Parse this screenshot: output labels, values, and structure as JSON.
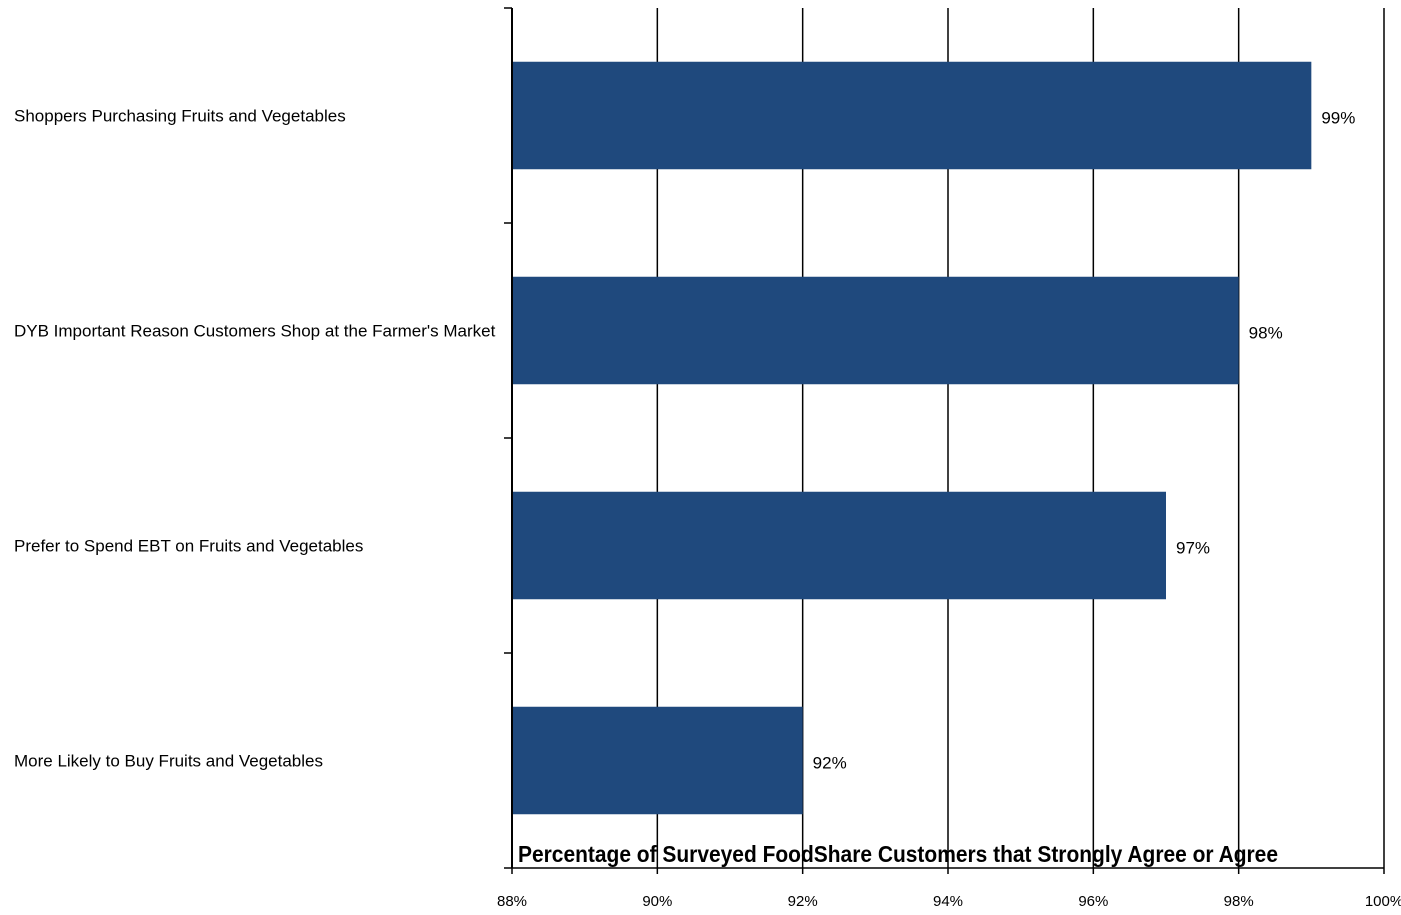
{
  "chart_data": {
    "type": "bar",
    "orientation": "horizontal",
    "title": "Percentage of Surveyed FoodShare Customers that Strongly Agree or Agree",
    "categories": [
      "Shoppers Purchasing Fruits and Vegetables",
      "DYB Important Reason Customers Shop at the Farmer's Market",
      "Prefer to Spend EBT on Fruits and Vegetables",
      "More Likely to Buy Fruits and Vegetables"
    ],
    "values": [
      99,
      98,
      97,
      92
    ],
    "data_labels": [
      "99%",
      "98%",
      "97%",
      "92%"
    ],
    "xlim": [
      88,
      100
    ],
    "x_ticks": [
      88,
      90,
      92,
      94,
      96,
      98,
      100
    ],
    "x_tick_labels": [
      "88%",
      "90%",
      "92%",
      "94%",
      "96%",
      "98%",
      "100%"
    ],
    "grid": true,
    "legend": false,
    "colors": {
      "bar": "#1F497D",
      "grid": "#000000",
      "axis": "#000000",
      "text": "#000000"
    }
  }
}
